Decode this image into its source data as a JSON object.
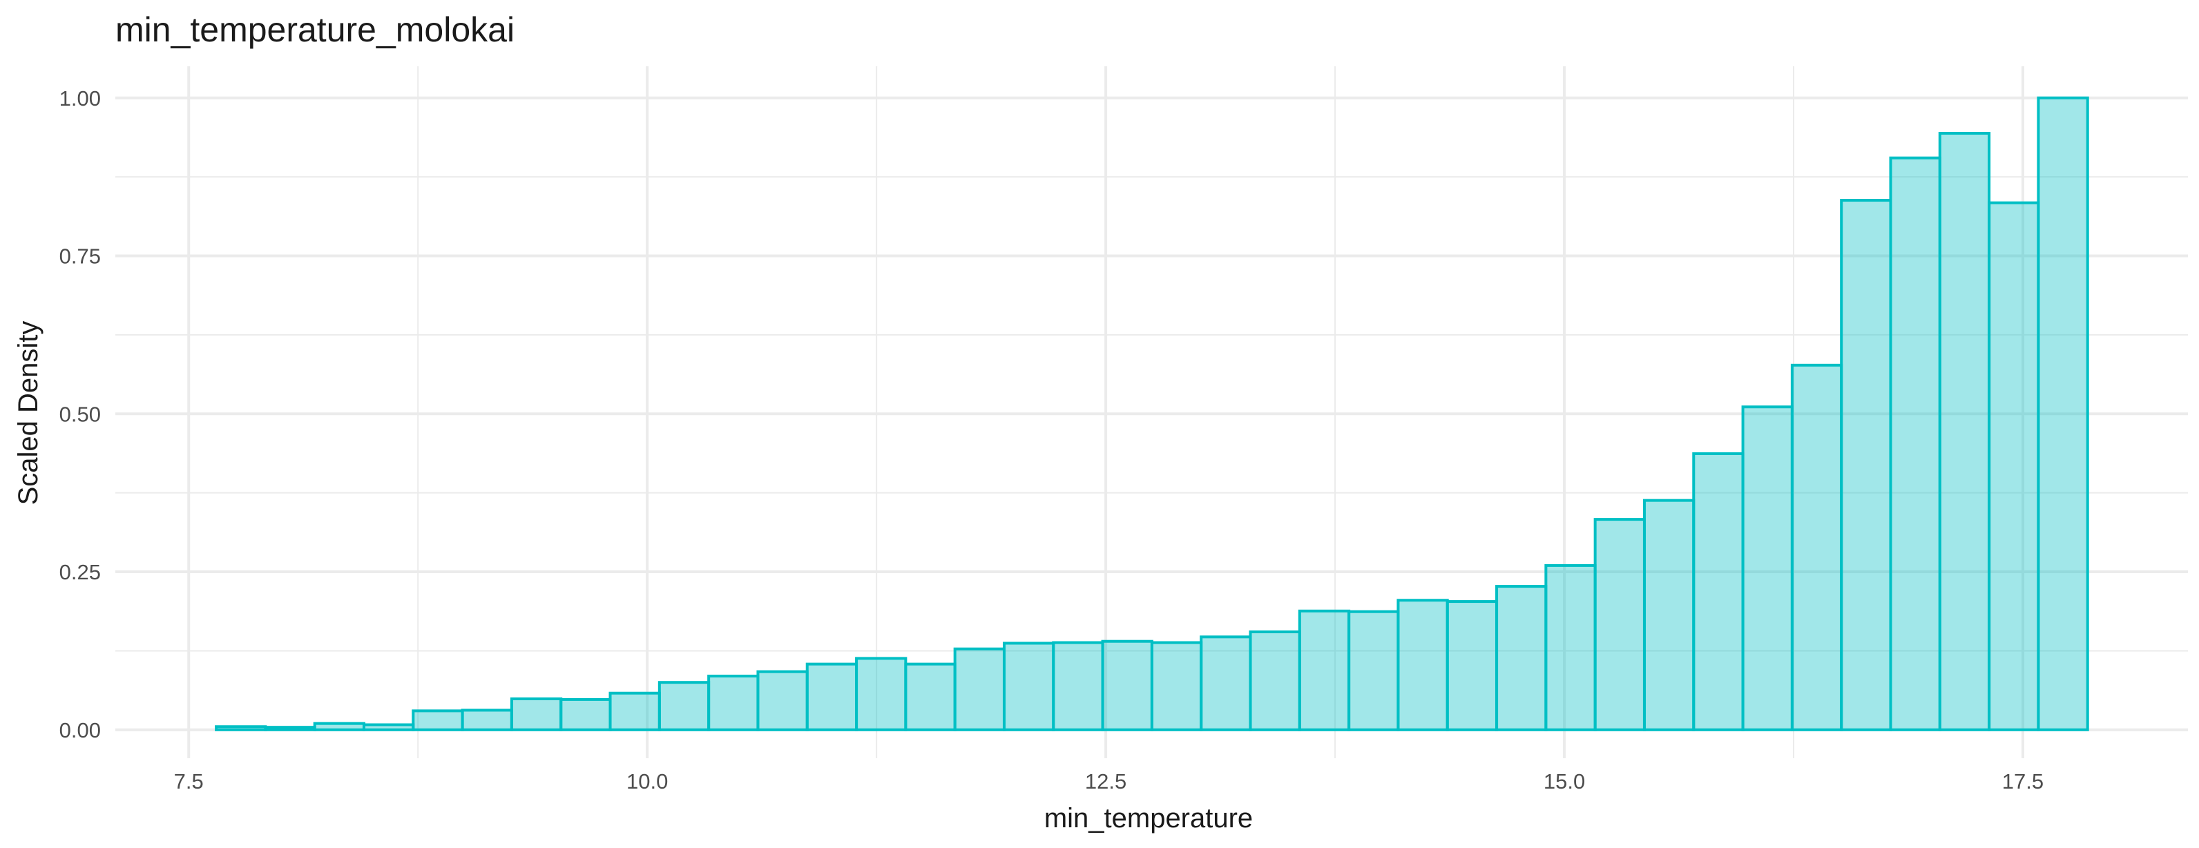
{
  "chart_data": {
    "type": "bar",
    "title": "min_temperature_molokai",
    "xlabel": "min_temperature",
    "ylabel": "Scaled Density",
    "xlim": [
      7.1,
      18.4
    ],
    "ylim": [
      -0.045,
      1.05
    ],
    "x_ticks": [
      7.5,
      10.0,
      12.5,
      15.0,
      17.5
    ],
    "x_tick_labels": [
      "7.5",
      "10.0",
      "12.5",
      "15.0",
      "17.5"
    ],
    "y_ticks": [
      0.0,
      0.25,
      0.5,
      0.75,
      1.0
    ],
    "y_tick_labels": [
      "0.00",
      "0.25",
      "0.50",
      "0.75",
      "1.00"
    ],
    "grid": true,
    "legend": "none",
    "colors": {
      "fill": "#00BFC4",
      "fill_opacity": 0.37,
      "outline": "#00BFC4",
      "grid": "#EBEBEB"
    },
    "bins": {
      "start": 7.65,
      "width": 0.2685,
      "values": [
        0.005,
        0.004,
        0.01,
        0.008,
        0.03,
        0.031,
        0.049,
        0.048,
        0.058,
        0.075,
        0.085,
        0.092,
        0.104,
        0.113,
        0.104,
        0.128,
        0.137,
        0.138,
        0.14,
        0.138,
        0.147,
        0.155,
        0.188,
        0.187,
        0.205,
        0.203,
        0.227,
        0.26,
        0.333,
        0.363,
        0.437,
        0.511,
        0.577,
        0.838,
        0.905,
        0.944,
        0.834,
        1.0
      ]
    }
  }
}
